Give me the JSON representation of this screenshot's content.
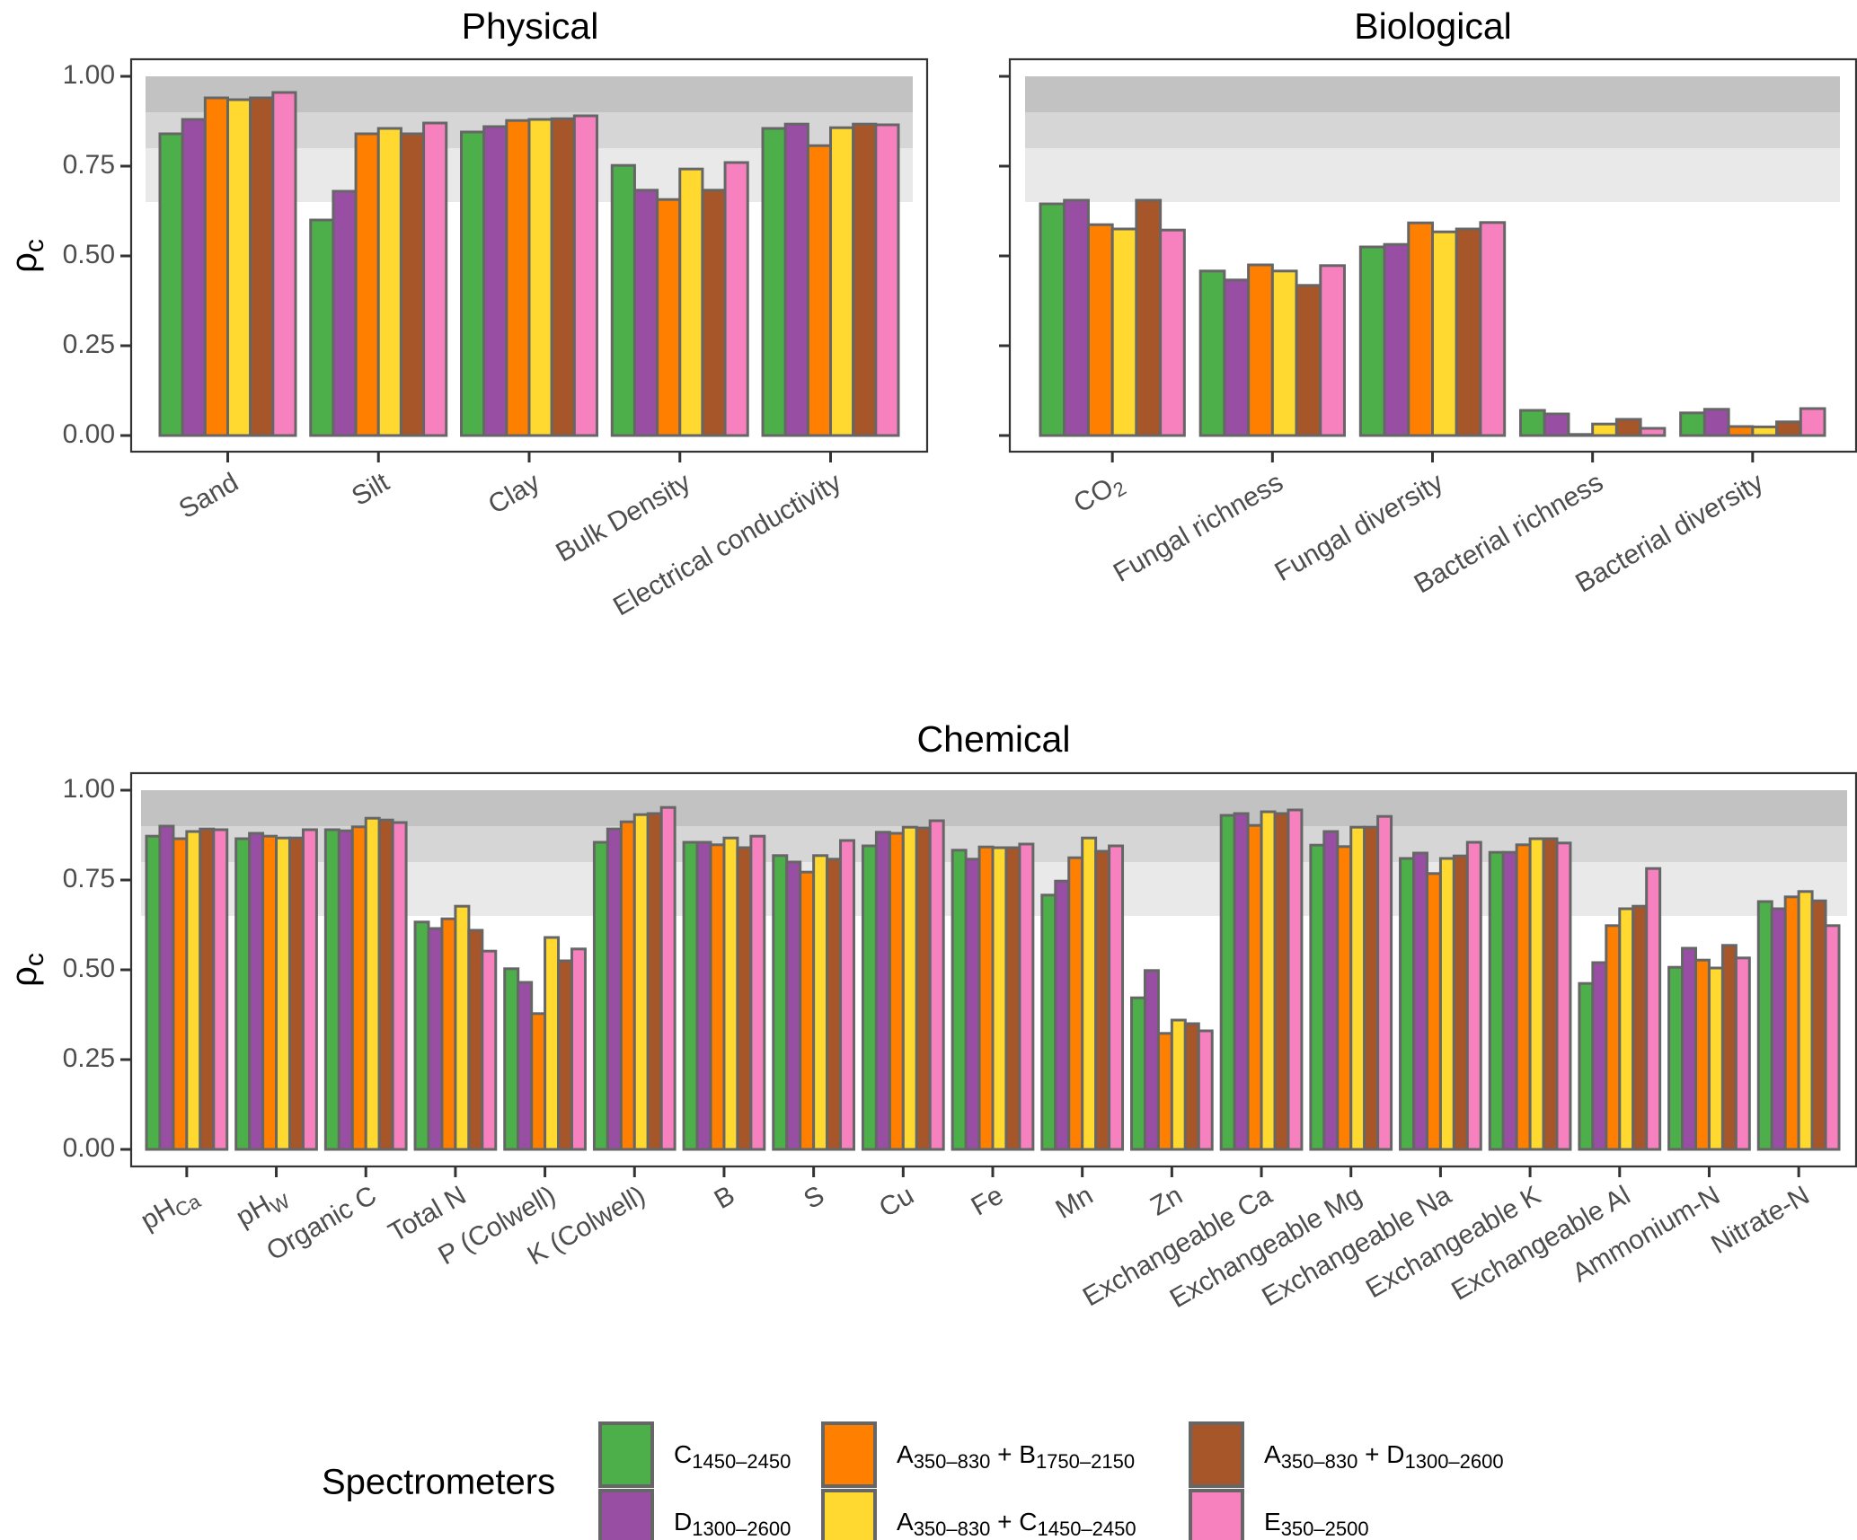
{
  "legend": {
    "title": "Spectrometers",
    "items": [
      {
        "key": "C",
        "label": "C",
        "sub": "1450–2450",
        "label2": "",
        "sub2": "",
        "color": "#4DAF4A"
      },
      {
        "key": "D",
        "label": "D",
        "sub": "1300–2600",
        "label2": "",
        "sub2": "",
        "color": "#984EA3"
      },
      {
        "key": "AB",
        "label": "A",
        "sub": "350–830",
        "label2": " + B",
        "sub2": "1750–2150",
        "color": "#FF7F00"
      },
      {
        "key": "AC",
        "label": "A",
        "sub": "350–830",
        "label2": " + C",
        "sub2": "1450–2450",
        "color": "#FFD92F"
      },
      {
        "key": "AD",
        "label": "A",
        "sub": "350–830",
        "label2": " + D",
        "sub2": "1300–2600",
        "color": "#A65628"
      },
      {
        "key": "E",
        "label": "E",
        "sub": "350–2500",
        "label2": "",
        "sub2": "",
        "color": "#F781BF"
      }
    ]
  },
  "bands": [
    {
      "from": 0.9,
      "to": 1.0,
      "color": "#C2C2C2"
    },
    {
      "from": 0.8,
      "to": 0.9,
      "color": "#D6D6D6"
    },
    {
      "from": 0.65,
      "to": 0.8,
      "color": "#E9E9E9"
    }
  ],
  "y_axis": {
    "label": "ρ",
    "label_sub": "c",
    "ticks": [
      "0.00",
      "0.25",
      "0.50",
      "0.75",
      "1.00"
    ]
  },
  "chart_data": [
    {
      "type": "bar",
      "title": "Physical",
      "xlabel": "",
      "ylabel": "ρc",
      "ylim": [
        0,
        1
      ],
      "grid": false,
      "categories": [
        {
          "label": "Sand",
          "sub": ""
        },
        {
          "label": "Silt",
          "sub": ""
        },
        {
          "label": "Clay",
          "sub": ""
        },
        {
          "label": "Bulk Density",
          "sub": ""
        },
        {
          "label": "Electrical conductivity",
          "sub": ""
        }
      ],
      "series": [
        {
          "name": "C1450–2450",
          "values": [
            0.84,
            0.6,
            0.845,
            0.752,
            0.855
          ]
        },
        {
          "name": "D1300–2600",
          "values": [
            0.88,
            0.68,
            0.86,
            0.683,
            0.867
          ]
        },
        {
          "name": "A350–830 + B1750–2150",
          "values": [
            0.94,
            0.84,
            0.877,
            0.657,
            0.807
          ]
        },
        {
          "name": "A350–830 + C1450–2450",
          "values": [
            0.935,
            0.855,
            0.88,
            0.742,
            0.857
          ]
        },
        {
          "name": "A350–830 + D1300–2600",
          "values": [
            0.94,
            0.84,
            0.882,
            0.683,
            0.867
          ]
        },
        {
          "name": "E350–2500",
          "values": [
            0.955,
            0.87,
            0.89,
            0.76,
            0.865
          ]
        }
      ]
    },
    {
      "type": "bar",
      "title": "Biological",
      "xlabel": "",
      "ylabel": "",
      "ylim": [
        0,
        1
      ],
      "grid": false,
      "categories": [
        {
          "label": "CO",
          "sub": "2"
        },
        {
          "label": "Fungal richness",
          "sub": ""
        },
        {
          "label": "Fungal diversity",
          "sub": ""
        },
        {
          "label": "Bacterial richness",
          "sub": ""
        },
        {
          "label": "Bacterial diversity",
          "sub": ""
        }
      ],
      "series": [
        {
          "name": "C1450–2450",
          "values": [
            0.645,
            0.458,
            0.525,
            0.07,
            0.063
          ]
        },
        {
          "name": "D1300–2600",
          "values": [
            0.655,
            0.433,
            0.532,
            0.06,
            0.073
          ]
        },
        {
          "name": "A350–830 + B1750–2150",
          "values": [
            0.587,
            0.475,
            0.592,
            0.003,
            0.025
          ]
        },
        {
          "name": "A350–830 + C1450–2450",
          "values": [
            0.575,
            0.458,
            0.567,
            0.032,
            0.024
          ]
        },
        {
          "name": "A350–830 + D1300–2600",
          "values": [
            0.655,
            0.418,
            0.575,
            0.045,
            0.038
          ]
        },
        {
          "name": "E350–2500",
          "values": [
            0.572,
            0.473,
            0.593,
            0.02,
            0.075
          ]
        }
      ]
    },
    {
      "type": "bar",
      "title": "Chemical",
      "xlabel": "",
      "ylabel": "ρc",
      "ylim": [
        0,
        1
      ],
      "grid": false,
      "categories": [
        {
          "label": "pH",
          "sub": "Ca"
        },
        {
          "label": "pH",
          "sub": "W"
        },
        {
          "label": "Organic C",
          "sub": ""
        },
        {
          "label": "Total N",
          "sub": ""
        },
        {
          "label": "P (Colwell)",
          "sub": ""
        },
        {
          "label": "K (Colwell)",
          "sub": ""
        },
        {
          "label": "B",
          "sub": ""
        },
        {
          "label": "S",
          "sub": ""
        },
        {
          "label": "Cu",
          "sub": ""
        },
        {
          "label": "Fe",
          "sub": ""
        },
        {
          "label": "Mn",
          "sub": ""
        },
        {
          "label": "Zn",
          "sub": ""
        },
        {
          "label": "Exchangeable Ca",
          "sub": ""
        },
        {
          "label": "Exchangeable Mg",
          "sub": ""
        },
        {
          "label": "Exchangeable Na",
          "sub": ""
        },
        {
          "label": "Exchangeable K",
          "sub": ""
        },
        {
          "label": "Exchangeable Al",
          "sub": ""
        },
        {
          "label": "Ammonium-N",
          "sub": ""
        },
        {
          "label": "Nitrate-N",
          "sub": ""
        }
      ],
      "series": [
        {
          "name": "C1450–2450",
          "values": [
            0.872,
            0.865,
            0.89,
            0.633,
            0.503,
            0.855,
            0.855,
            0.818,
            0.845,
            0.833,
            0.708,
            0.422,
            0.93,
            0.847,
            0.81,
            0.827,
            0.462,
            0.507,
            0.69
          ]
        },
        {
          "name": "D1300–2600",
          "values": [
            0.9,
            0.88,
            0.887,
            0.615,
            0.465,
            0.892,
            0.855,
            0.8,
            0.883,
            0.808,
            0.747,
            0.498,
            0.935,
            0.885,
            0.825,
            0.827,
            0.52,
            0.56,
            0.67
          ]
        },
        {
          "name": "A350–830 + B1750–2150",
          "values": [
            0.865,
            0.872,
            0.898,
            0.642,
            0.378,
            0.912,
            0.848,
            0.772,
            0.88,
            0.842,
            0.812,
            0.323,
            0.902,
            0.843,
            0.768,
            0.848,
            0.623,
            0.527,
            0.703
          ]
        },
        {
          "name": "A350–830 + C1450–2450",
          "values": [
            0.885,
            0.867,
            0.922,
            0.677,
            0.59,
            0.932,
            0.867,
            0.818,
            0.897,
            0.84,
            0.867,
            0.36,
            0.94,
            0.897,
            0.81,
            0.865,
            0.67,
            0.505,
            0.718
          ]
        },
        {
          "name": "A350–830 + D1300–2600",
          "values": [
            0.892,
            0.867,
            0.917,
            0.61,
            0.525,
            0.935,
            0.84,
            0.808,
            0.895,
            0.84,
            0.83,
            0.35,
            0.935,
            0.897,
            0.817,
            0.865,
            0.677,
            0.568,
            0.692
          ]
        },
        {
          "name": "E350–2500",
          "values": [
            0.89,
            0.89,
            0.91,
            0.552,
            0.558,
            0.952,
            0.872,
            0.86,
            0.915,
            0.85,
            0.845,
            0.33,
            0.945,
            0.927,
            0.855,
            0.853,
            0.782,
            0.533,
            0.623
          ]
        }
      ]
    }
  ]
}
